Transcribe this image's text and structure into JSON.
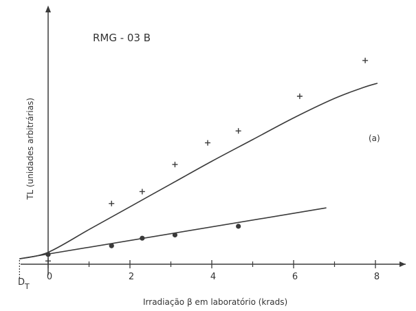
{
  "chart_data": {
    "type": "scatter",
    "title": "RMG - 03 B",
    "annotation": "(a)",
    "xlabel": "Irradiação β em laboratório (krads)",
    "ylabel": "TL (unidades arbitrárias)",
    "dt_label_main": "D",
    "dt_label_sub": "T",
    "x_ticks": [
      0,
      2,
      4,
      6,
      8
    ],
    "x_minor_ticks": [
      1,
      3,
      5,
      7
    ],
    "xlim": [
      -0.8,
      8.5
    ],
    "ylim": [
      0,
      10
    ],
    "dt_value": -0.7,
    "grid": false,
    "series": [
      {
        "marker": "plus",
        "x": [
          0.0,
          1.55,
          2.3,
          3.1,
          3.9,
          4.65,
          6.15,
          7.75
        ],
        "y": [
          0.15,
          2.8,
          3.35,
          4.6,
          5.6,
          6.15,
          7.75,
          9.4
        ],
        "fit": {
          "x": [
            -0.7,
            0,
            1,
            2,
            3,
            4,
            5,
            6,
            7,
            7.7,
            8.05
          ],
          "y": [
            0.25,
            0.55,
            1.6,
            2.65,
            3.7,
            4.75,
            5.75,
            6.75,
            7.65,
            8.15,
            8.35
          ]
        }
      },
      {
        "marker": "dot",
        "x": [
          0.0,
          1.55,
          2.3,
          3.1,
          4.65
        ],
        "y": [
          0.45,
          0.85,
          1.2,
          1.35,
          1.75
        ],
        "fit": {
          "x": [
            -0.7,
            6.8
          ],
          "y": [
            0.25,
            2.6
          ]
        }
      }
    ]
  }
}
